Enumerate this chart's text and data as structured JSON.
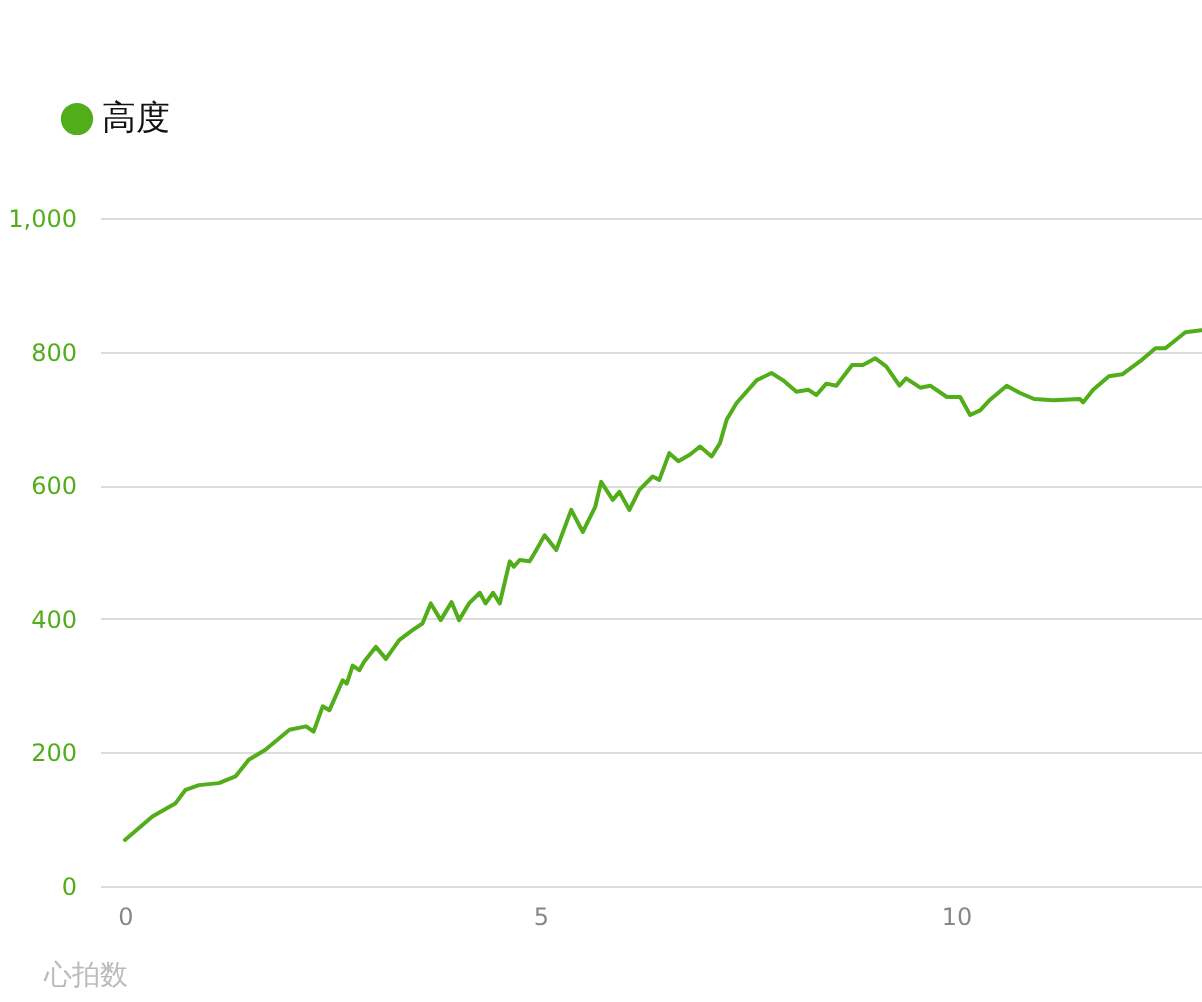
{
  "chart_data": {
    "type": "line",
    "legend": "top left",
    "grid": "y",
    "marker": "none",
    "line_style": "solid",
    "xlim": [
      -0.3,
      12.96
    ],
    "xticks": [
      0,
      5,
      10
    ],
    "ylim": [
      0,
      1000
    ],
    "yticks": [
      {
        "value": 0,
        "label": "0"
      },
      {
        "value": 200,
        "label": "200"
      },
      {
        "value": 400,
        "label": "400"
      },
      {
        "value": 600,
        "label": "600"
      },
      {
        "value": 800,
        "label": "800"
      },
      {
        "value": 1000,
        "label": "1,000"
      }
    ],
    "annotations": [
      "心拍数"
    ],
    "series": [
      {
        "name": "高度",
        "color": "#52ad1a",
        "x": [
          0,
          0.33,
          0.61,
          0.73,
          0.89,
          1.13,
          1.33,
          1.49,
          1.69,
          1.98,
          2.18,
          2.27,
          2.38,
          2.46,
          2.62,
          2.67,
          2.74,
          2.82,
          2.88,
          3.02,
          3.14,
          3.3,
          3.46,
          3.58,
          3.68,
          3.8,
          3.93,
          4.02,
          4.14,
          4.27,
          4.34,
          4.43,
          4.51,
          4.63,
          4.68,
          4.75,
          4.87,
          4.95,
          5.05,
          5.19,
          5.37,
          5.51,
          5.66,
          5.73,
          5.87,
          5.95,
          6.07,
          6.19,
          6.35,
          6.43,
          6.55,
          6.66,
          6.8,
          6.92,
          7.06,
          7.16,
          7.24,
          7.36,
          7.6,
          7.78,
          7.92,
          8.08,
          8.22,
          8.32,
          8.44,
          8.56,
          8.75,
          8.88,
          9.03,
          9.16,
          9.32,
          9.4,
          9.57,
          9.69,
          9.89,
          10.05,
          10.17,
          10.29,
          10.41,
          10.61,
          10.77,
          10.94,
          11.17,
          11.49,
          11.53,
          11.65,
          11.84,
          12.0,
          12.22,
          12.4,
          12.52,
          12.76,
          12.95
        ],
        "values": [
          69,
          104,
          124,
          144,
          151,
          154,
          164,
          189,
          204,
          234,
          239,
          231,
          269,
          263,
          308,
          303,
          330,
          323,
          336,
          358,
          340,
          368,
          383,
          393,
          423,
          398,
          425,
          398,
          423,
          439,
          423,
          439,
          423,
          486,
          478,
          488,
          486,
          503,
          525,
          503,
          563,
          530,
          568,
          605,
          578,
          590,
          563,
          593,
          613,
          608,
          648,
          636,
          646,
          658,
          643,
          663,
          698,
          723,
          757,
          768,
          757,
          740,
          743,
          735,
          752,
          749,
          780,
          780,
          790,
          778,
          749,
          760,
          746,
          749,
          732,
          732,
          705,
          712,
          728,
          749,
          738,
          729,
          727,
          729,
          724,
          743,
          763,
          766,
          786,
          805,
          805,
          829,
          832
        ]
      }
    ]
  }
}
